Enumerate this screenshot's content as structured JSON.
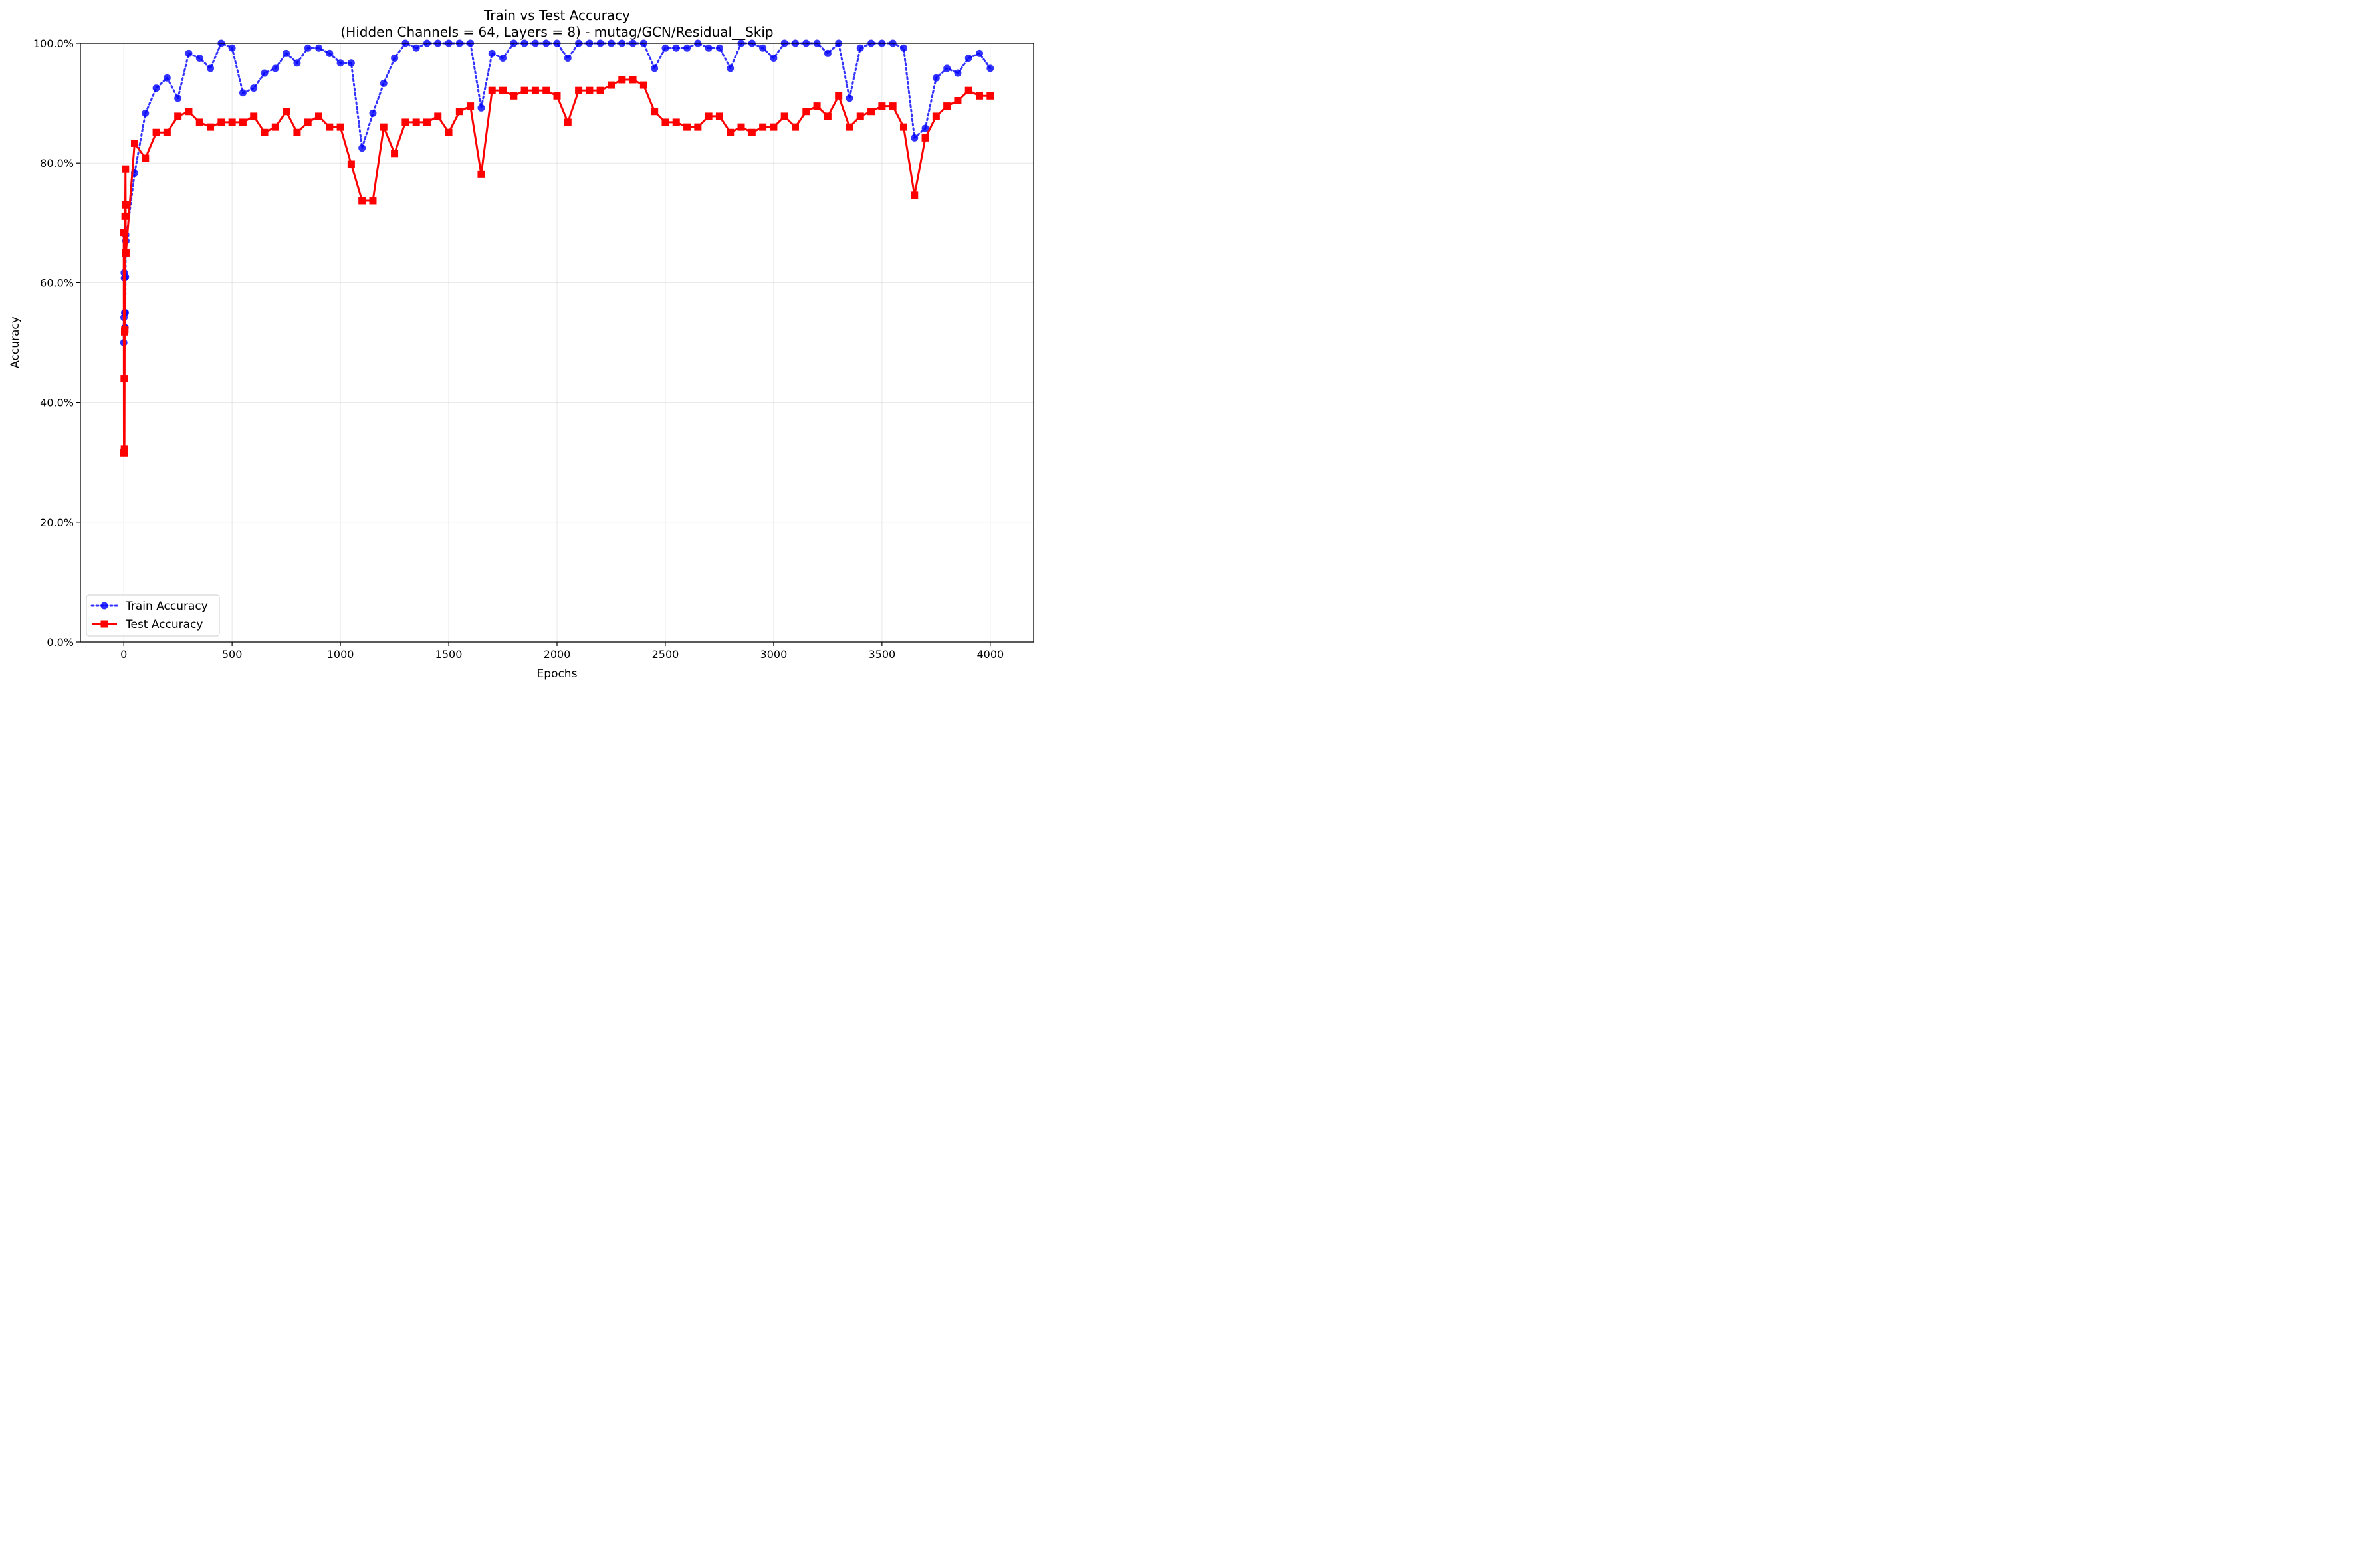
{
  "chart_data": {
    "type": "line",
    "title": "Train vs Test Accuracy",
    "subtitle": "(Hidden Channels = 64, Layers = 8) - mutag/GCN/Residual__Skip",
    "xlabel": "Epochs",
    "ylabel": "Accuracy",
    "xlim": [
      -200,
      4200
    ],
    "ylim": [
      0,
      100
    ],
    "grid": true,
    "legend_position": "bottom-left",
    "x_ticks": [
      0,
      500,
      1000,
      1500,
      2000,
      2500,
      3000,
      3500,
      4000
    ],
    "x_tick_labels": [
      "0",
      "500",
      "1000",
      "1500",
      "2000",
      "2500",
      "3000",
      "3500",
      "4000"
    ],
    "y_ticks": [
      0,
      20,
      40,
      60,
      80,
      100
    ],
    "y_tick_labels": [
      "0.0%",
      "20.0%",
      "40.0%",
      "60.0%",
      "80.0%",
      "100.0%"
    ],
    "x": [
      0,
      1,
      2,
      3,
      4,
      5,
      6,
      7,
      8,
      9,
      10,
      50,
      100,
      150,
      200,
      250,
      300,
      350,
      400,
      450,
      500,
      550,
      600,
      650,
      700,
      750,
      800,
      850,
      900,
      950,
      1000,
      1050,
      1100,
      1150,
      1200,
      1250,
      1300,
      1350,
      1400,
      1450,
      1500,
      1550,
      1600,
      1650,
      1700,
      1750,
      1800,
      1850,
      1900,
      1950,
      2000,
      2050,
      2100,
      2150,
      2200,
      2250,
      2300,
      2350,
      2400,
      2450,
      2500,
      2550,
      2600,
      2650,
      2700,
      2750,
      2800,
      2850,
      2900,
      2950,
      3000,
      3050,
      3100,
      3150,
      3200,
      3250,
      3300,
      3350,
      3400,
      3450,
      3500,
      3550,
      3600,
      3650,
      3700,
      3750,
      3800,
      3850,
      3900,
      3950,
      4000
    ],
    "series": [
      {
        "name": "Train Accuracy",
        "color": "#0000ff",
        "style": "dotted",
        "marker": "circle",
        "values": [
          50.0,
          54.2,
          61.7,
          60.8,
          55.0,
          52.5,
          52.5,
          55.0,
          61.0,
          68.0,
          67.0,
          78.3,
          88.3,
          92.5,
          94.2,
          90.8,
          98.3,
          97.5,
          95.8,
          100.0,
          99.2,
          91.7,
          92.5,
          95.0,
          95.8,
          98.3,
          96.7,
          99.2,
          99.2,
          98.3,
          96.7,
          96.7,
          82.5,
          88.3,
          93.3,
          97.5,
          100.0,
          99.2,
          100.0,
          100.0,
          100.0,
          100.0,
          100.0,
          89.2,
          98.3,
          97.5,
          100.0,
          100.0,
          100.0,
          100.0,
          100.0,
          97.5,
          100.0,
          100.0,
          100.0,
          100.0,
          100.0,
          100.0,
          100.0,
          95.8,
          99.2,
          99.2,
          99.2,
          100.0,
          99.2,
          99.2,
          95.8,
          100.0,
          100.0,
          99.2,
          97.5,
          100.0,
          100.0,
          100.0,
          100.0,
          98.3,
          100.0,
          90.8,
          99.2,
          100.0,
          100.0,
          100.0,
          99.2,
          84.2,
          85.8,
          94.2,
          95.8,
          95.0,
          97.5,
          98.3,
          95.8
        ]
      },
      {
        "name": "Test Accuracy",
        "color": "#ff0000",
        "style": "solid",
        "marker": "square",
        "values": [
          68.4,
          31.6,
          44.0,
          32.2,
          51.8,
          52.2,
          71.1,
          73.0,
          79.0,
          65.0,
          65.0,
          83.3,
          80.8,
          85.1,
          85.1,
          87.8,
          88.6,
          86.8,
          86.0,
          86.8,
          86.8,
          86.8,
          87.8,
          85.1,
          86.0,
          88.6,
          85.1,
          86.8,
          87.8,
          86.0,
          86.0,
          79.8,
          73.7,
          73.7,
          86.0,
          81.6,
          86.8,
          86.8,
          86.8,
          87.8,
          85.1,
          88.6,
          89.5,
          78.1,
          92.1,
          92.1,
          91.2,
          92.1,
          92.1,
          92.1,
          91.2,
          86.8,
          92.1,
          92.1,
          92.1,
          93.0,
          93.9,
          93.9,
          93.0,
          88.6,
          86.8,
          86.8,
          86.0,
          86.0,
          87.8,
          87.8,
          85.1,
          86.0,
          85.1,
          86.0,
          86.0,
          87.8,
          86.0,
          88.6,
          89.5,
          87.8,
          91.2,
          86.0,
          87.8,
          88.6,
          89.5,
          89.5,
          86.0,
          74.6,
          84.2,
          87.8,
          89.5,
          90.4,
          92.1,
          91.2,
          91.2
        ]
      }
    ]
  }
}
